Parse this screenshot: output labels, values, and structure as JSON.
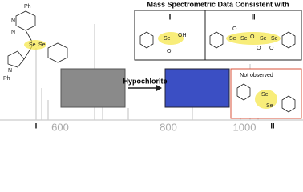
{
  "header": {
    "title": "Mass Spectrometric Data Consistent with"
  },
  "panel_labels": [
    "I",
    "II"
  ],
  "arrow_label": "Hypochlorite",
  "inset": {
    "note": "Not observed"
  },
  "spectrum": {
    "axis_labels": [
      "600",
      "800",
      "1000"
    ],
    "peak_labels": [
      "I",
      "II"
    ]
  },
  "molecule_labels": [
    "Ph",
    "N",
    "N",
    "Se",
    "Se",
    "Ph",
    "N",
    "Se",
    "OH",
    "O",
    "Se",
    "Se",
    "O",
    "O",
    "Se",
    "O",
    "O",
    "Se",
    "Se",
    "Se"
  ]
}
